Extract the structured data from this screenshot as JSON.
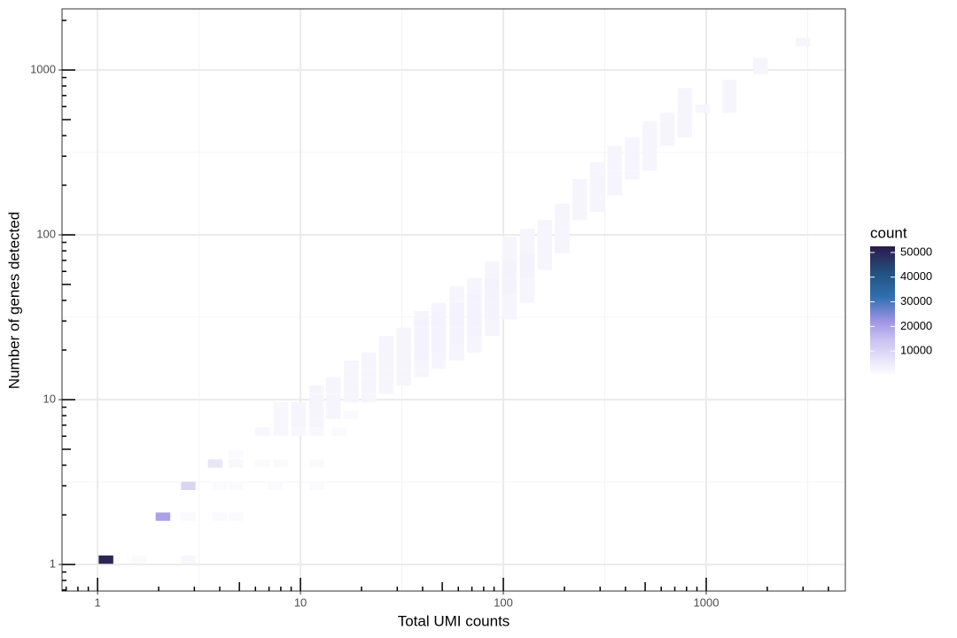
{
  "chart_data": {
    "type": "bin2d",
    "xlabel": "Total UMI counts",
    "ylabel": "Number of genes detected",
    "xlog": true,
    "ylog": true,
    "grid": true,
    "xlim": [
      0.668,
      4850
    ],
    "ylim": [
      0.69,
      2350
    ],
    "xticks": [
      1,
      10,
      100,
      1000
    ],
    "yticks": [
      1,
      10,
      100,
      1000
    ],
    "xminorgrid": [
      3.162,
      31.62,
      316.2,
      3162
    ],
    "yminorgrid": [
      3.162,
      31.62,
      316.2
    ],
    "xminorticks": [
      0.7,
      0.8,
      0.9,
      2,
      3,
      4,
      5,
      6,
      7,
      8,
      9,
      20,
      30,
      40,
      50,
      60,
      70,
      80,
      90,
      200,
      300,
      400,
      500,
      600,
      700,
      800,
      900,
      2000,
      3000,
      4000
    ],
    "yminorticks": [
      0.7,
      0.8,
      0.9,
      2,
      3,
      4,
      5,
      6,
      7,
      8,
      9,
      20,
      30,
      40,
      50,
      60,
      70,
      80,
      90,
      200,
      300,
      400,
      500,
      600,
      700,
      800,
      900,
      2000
    ],
    "legend": {
      "title": "count",
      "limits": [
        0,
        52500
      ],
      "ticks": [
        10000,
        20000,
        30000,
        40000,
        50000
      ],
      "colors": [
        [
          0,
          "#ffffff"
        ],
        [
          15000,
          "#c8c0f0"
        ],
        [
          22000,
          "#9f95e6"
        ],
        [
          32000,
          "#2f6fb0"
        ],
        [
          42000,
          "#22507f"
        ],
        [
          52500,
          "#2c1a4c"
        ]
      ]
    },
    "bins": [
      {
        "x": 1.1,
        "y": 1.07,
        "count": 50000
      },
      {
        "x": 1.6,
        "y": 1.07,
        "count": 1500
      },
      {
        "x": 2.8,
        "y": 1.07,
        "count": 2000
      },
      {
        "x": 2.1,
        "y": 1.95,
        "count": 20000
      },
      {
        "x": 2.8,
        "y": 1.95,
        "count": 1500
      },
      {
        "x": 4,
        "y": 1.95,
        "count": 1500
      },
      {
        "x": 4.8,
        "y": 1.95,
        "count": 1500
      },
      {
        "x": 2.8,
        "y": 3.0,
        "count": 10000
      },
      {
        "x": 4,
        "y": 3.0,
        "count": 1500
      },
      {
        "x": 4.8,
        "y": 3.0,
        "count": 1500
      },
      {
        "x": 7.5,
        "y": 3.0,
        "count": 1500
      },
      {
        "x": 12,
        "y": 3.0,
        "count": 1500
      },
      {
        "x": 3.8,
        "y": 4.1,
        "count": 6000
      },
      {
        "x": 4.8,
        "y": 4.1,
        "count": 2000
      },
      {
        "x": 6.5,
        "y": 4.1,
        "count": 1500
      },
      {
        "x": 8,
        "y": 4.1,
        "count": 1500
      },
      {
        "x": 12,
        "y": 4.1,
        "count": 1500
      },
      {
        "x": 4.8,
        "y": 4.7,
        "count": 1500
      },
      {
        "x": 15.5,
        "y": 6.4,
        "count": 1500
      },
      {
        "x": 6.5,
        "y": 6.4,
        "count": 2000
      },
      {
        "x": 8,
        "y": 6.4,
        "count": 2000
      },
      {
        "x": 9.8,
        "y": 6.4,
        "count": 2000
      },
      {
        "x": 12,
        "y": 6.4,
        "count": 2000
      },
      {
        "x": 8,
        "y": 7.2,
        "count": 2000
      },
      {
        "x": 8,
        "y": 8.1,
        "count": 2000
      },
      {
        "x": 8,
        "y": 9.1,
        "count": 2000
      },
      {
        "x": 9.8,
        "y": 7.2,
        "count": 2500
      },
      {
        "x": 9.8,
        "y": 8.1,
        "count": 2500
      },
      {
        "x": 9.8,
        "y": 9.1,
        "count": 2500
      },
      {
        "x": 12,
        "y": 7.2,
        "count": 2500
      },
      {
        "x": 12,
        "y": 8.1,
        "count": 2500
      },
      {
        "x": 12,
        "y": 9.1,
        "count": 2500
      },
      {
        "x": 12,
        "y": 10.2,
        "count": 2500
      },
      {
        "x": 12,
        "y": 11.5,
        "count": 2500
      },
      {
        "x": 14.5,
        "y": 8.1,
        "count": 2500
      },
      {
        "x": 14.5,
        "y": 9.1,
        "count": 2500
      },
      {
        "x": 14.5,
        "y": 10.2,
        "count": 2500
      },
      {
        "x": 14.5,
        "y": 11.5,
        "count": 2500
      },
      {
        "x": 14.5,
        "y": 12.9,
        "count": 2500
      },
      {
        "x": 17.8,
        "y": 8.1,
        "count": 1500
      },
      {
        "x": 17.8,
        "y": 10.2,
        "count": 2500
      },
      {
        "x": 17.8,
        "y": 11.5,
        "count": 2500
      },
      {
        "x": 17.8,
        "y": 12.9,
        "count": 2500
      },
      {
        "x": 17.8,
        "y": 14.5,
        "count": 2500
      },
      {
        "x": 17.8,
        "y": 16.3,
        "count": 2500
      },
      {
        "x": 21.7,
        "y": 10.2,
        "count": 2500
      },
      {
        "x": 21.7,
        "y": 11.5,
        "count": 2500
      },
      {
        "x": 21.7,
        "y": 12.9,
        "count": 2500
      },
      {
        "x": 21.7,
        "y": 14.5,
        "count": 2500
      },
      {
        "x": 21.7,
        "y": 16.3,
        "count": 2500
      },
      {
        "x": 21.7,
        "y": 18.3,
        "count": 2500
      },
      {
        "x": 26.5,
        "y": 11.5,
        "count": 2500
      },
      {
        "x": 26.5,
        "y": 12.9,
        "count": 2500
      },
      {
        "x": 26.5,
        "y": 14.5,
        "count": 2500
      },
      {
        "x": 26.5,
        "y": 16.3,
        "count": 2500
      },
      {
        "x": 26.5,
        "y": 18.3,
        "count": 2500
      },
      {
        "x": 26.5,
        "y": 20.5,
        "count": 2500
      },
      {
        "x": 26.5,
        "y": 23,
        "count": 2500
      },
      {
        "x": 32.3,
        "y": 12.9,
        "count": 2500
      },
      {
        "x": 32.3,
        "y": 14.5,
        "count": 2500
      },
      {
        "x": 32.3,
        "y": 16.3,
        "count": 2500
      },
      {
        "x": 32.3,
        "y": 18.3,
        "count": 2500
      },
      {
        "x": 32.3,
        "y": 20.5,
        "count": 2500
      },
      {
        "x": 32.3,
        "y": 23,
        "count": 2500
      },
      {
        "x": 32.3,
        "y": 25.8,
        "count": 2500
      },
      {
        "x": 39.5,
        "y": 14.5,
        "count": 2500
      },
      {
        "x": 39.5,
        "y": 16.3,
        "count": 2500
      },
      {
        "x": 39.5,
        "y": 18.3,
        "count": 3000
      },
      {
        "x": 39.5,
        "y": 20.5,
        "count": 3000
      },
      {
        "x": 39.5,
        "y": 23,
        "count": 3000
      },
      {
        "x": 39.5,
        "y": 25.8,
        "count": 3000
      },
      {
        "x": 39.5,
        "y": 29,
        "count": 3000
      },
      {
        "x": 39.5,
        "y": 32.5,
        "count": 2500
      },
      {
        "x": 48,
        "y": 16.3,
        "count": 2500
      },
      {
        "x": 48,
        "y": 18.3,
        "count": 2500
      },
      {
        "x": 48,
        "y": 20.5,
        "count": 3000
      },
      {
        "x": 48,
        "y": 23,
        "count": 3000
      },
      {
        "x": 48,
        "y": 25.8,
        "count": 3000
      },
      {
        "x": 48,
        "y": 29,
        "count": 3000
      },
      {
        "x": 48,
        "y": 32.5,
        "count": 3000
      },
      {
        "x": 48,
        "y": 36.5,
        "count": 2500
      },
      {
        "x": 59,
        "y": 18.3,
        "count": 2500
      },
      {
        "x": 59,
        "y": 20.5,
        "count": 2500
      },
      {
        "x": 59,
        "y": 23,
        "count": 3000
      },
      {
        "x": 59,
        "y": 25.8,
        "count": 3000
      },
      {
        "x": 59,
        "y": 29,
        "count": 3000
      },
      {
        "x": 59,
        "y": 32.5,
        "count": 3000
      },
      {
        "x": 59,
        "y": 36.5,
        "count": 3000
      },
      {
        "x": 59,
        "y": 41,
        "count": 2500
      },
      {
        "x": 59,
        "y": 46,
        "count": 2500
      },
      {
        "x": 72,
        "y": 20.5,
        "count": 2500
      },
      {
        "x": 72,
        "y": 23,
        "count": 2500
      },
      {
        "x": 72,
        "y": 25.8,
        "count": 3000
      },
      {
        "x": 72,
        "y": 29,
        "count": 3000
      },
      {
        "x": 72,
        "y": 32.5,
        "count": 3000
      },
      {
        "x": 72,
        "y": 36.5,
        "count": 3000
      },
      {
        "x": 72,
        "y": 41,
        "count": 3000
      },
      {
        "x": 72,
        "y": 46,
        "count": 2500
      },
      {
        "x": 72,
        "y": 51.6,
        "count": 2500
      },
      {
        "x": 88,
        "y": 25.8,
        "count": 2500
      },
      {
        "x": 88,
        "y": 29,
        "count": 2500
      },
      {
        "x": 88,
        "y": 32.5,
        "count": 3000
      },
      {
        "x": 88,
        "y": 36.5,
        "count": 3000
      },
      {
        "x": 88,
        "y": 41,
        "count": 3000
      },
      {
        "x": 88,
        "y": 46,
        "count": 3000
      },
      {
        "x": 88,
        "y": 51.6,
        "count": 3000
      },
      {
        "x": 88,
        "y": 58,
        "count": 2500
      },
      {
        "x": 88,
        "y": 65,
        "count": 2500
      },
      {
        "x": 107,
        "y": 32.5,
        "count": 2500
      },
      {
        "x": 107,
        "y": 36.5,
        "count": 2500
      },
      {
        "x": 107,
        "y": 41,
        "count": 2500
      },
      {
        "x": 107,
        "y": 46,
        "count": 3000
      },
      {
        "x": 107,
        "y": 51.6,
        "count": 3000
      },
      {
        "x": 107,
        "y": 58,
        "count": 3000
      },
      {
        "x": 107,
        "y": 65,
        "count": 3000
      },
      {
        "x": 107,
        "y": 73,
        "count": 2500
      },
      {
        "x": 107,
        "y": 82,
        "count": 2500
      },
      {
        "x": 107,
        "y": 92,
        "count": 2500
      },
      {
        "x": 131,
        "y": 41,
        "count": 2500
      },
      {
        "x": 131,
        "y": 46,
        "count": 2500
      },
      {
        "x": 131,
        "y": 51.6,
        "count": 2500
      },
      {
        "x": 131,
        "y": 58,
        "count": 3000
      },
      {
        "x": 131,
        "y": 65,
        "count": 3000
      },
      {
        "x": 131,
        "y": 73,
        "count": 3000
      },
      {
        "x": 131,
        "y": 82,
        "count": 2500
      },
      {
        "x": 131,
        "y": 92,
        "count": 2500
      },
      {
        "x": 131,
        "y": 103,
        "count": 2500
      },
      {
        "x": 160,
        "y": 65,
        "count": 2500
      },
      {
        "x": 160,
        "y": 73,
        "count": 2500
      },
      {
        "x": 160,
        "y": 82,
        "count": 2500
      },
      {
        "x": 160,
        "y": 92,
        "count": 2500
      },
      {
        "x": 160,
        "y": 103,
        "count": 2500
      },
      {
        "x": 160,
        "y": 116,
        "count": 2500
      },
      {
        "x": 195,
        "y": 82,
        "count": 2500
      },
      {
        "x": 195,
        "y": 92,
        "count": 2500
      },
      {
        "x": 195,
        "y": 103,
        "count": 2500
      },
      {
        "x": 195,
        "y": 116,
        "count": 2500
      },
      {
        "x": 195,
        "y": 130,
        "count": 2500
      },
      {
        "x": 195,
        "y": 146,
        "count": 2500
      },
      {
        "x": 238,
        "y": 130,
        "count": 2500
      },
      {
        "x": 238,
        "y": 146,
        "count": 2500
      },
      {
        "x": 238,
        "y": 164,
        "count": 2500
      },
      {
        "x": 238,
        "y": 184,
        "count": 2500
      },
      {
        "x": 238,
        "y": 206,
        "count": 2500
      },
      {
        "x": 290,
        "y": 146,
        "count": 2500
      },
      {
        "x": 290,
        "y": 164,
        "count": 2500
      },
      {
        "x": 290,
        "y": 184,
        "count": 2500
      },
      {
        "x": 290,
        "y": 206,
        "count": 2500
      },
      {
        "x": 290,
        "y": 231,
        "count": 2500
      },
      {
        "x": 290,
        "y": 260,
        "count": 2500
      },
      {
        "x": 354,
        "y": 184,
        "count": 2500
      },
      {
        "x": 354,
        "y": 206,
        "count": 2500
      },
      {
        "x": 354,
        "y": 231,
        "count": 2500
      },
      {
        "x": 354,
        "y": 260,
        "count": 2500
      },
      {
        "x": 354,
        "y": 292,
        "count": 2500
      },
      {
        "x": 354,
        "y": 327,
        "count": 2500
      },
      {
        "x": 432,
        "y": 231,
        "count": 2500
      },
      {
        "x": 432,
        "y": 260,
        "count": 2500
      },
      {
        "x": 432,
        "y": 292,
        "count": 2500
      },
      {
        "x": 432,
        "y": 327,
        "count": 2500
      },
      {
        "x": 432,
        "y": 367,
        "count": 2500
      },
      {
        "x": 527,
        "y": 260,
        "count": 2500
      },
      {
        "x": 527,
        "y": 292,
        "count": 2500
      },
      {
        "x": 527,
        "y": 327,
        "count": 2500
      },
      {
        "x": 527,
        "y": 367,
        "count": 2500
      },
      {
        "x": 527,
        "y": 412,
        "count": 2500
      },
      {
        "x": 527,
        "y": 462,
        "count": 2500
      },
      {
        "x": 643,
        "y": 367,
        "count": 2500
      },
      {
        "x": 643,
        "y": 412,
        "count": 2500
      },
      {
        "x": 643,
        "y": 462,
        "count": 2500
      },
      {
        "x": 643,
        "y": 519,
        "count": 2500
      },
      {
        "x": 785,
        "y": 412,
        "count": 2500
      },
      {
        "x": 785,
        "y": 462,
        "count": 2500
      },
      {
        "x": 785,
        "y": 519,
        "count": 2500
      },
      {
        "x": 785,
        "y": 582,
        "count": 2500
      },
      {
        "x": 785,
        "y": 653,
        "count": 2500
      },
      {
        "x": 785,
        "y": 733,
        "count": 2500
      },
      {
        "x": 960,
        "y": 582,
        "count": 2500
      },
      {
        "x": 1300,
        "y": 582,
        "count": 2500
      },
      {
        "x": 1300,
        "y": 653,
        "count": 2500
      },
      {
        "x": 1300,
        "y": 733,
        "count": 2500
      },
      {
        "x": 1300,
        "y": 823,
        "count": 2500
      },
      {
        "x": 1850,
        "y": 1000,
        "count": 2500
      },
      {
        "x": 1850,
        "y": 1120,
        "count": 2500
      },
      {
        "x": 3000,
        "y": 1480,
        "count": 2500
      }
    ]
  }
}
